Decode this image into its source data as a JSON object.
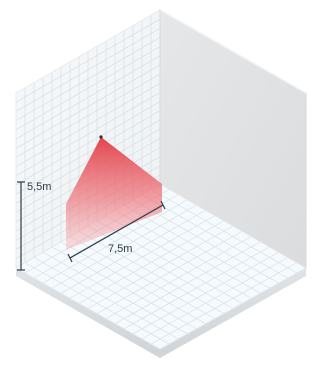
{
  "diagram": {
    "height_label": "5,5m",
    "width_label": "7,5m"
  },
  "colors": {
    "left_wall": "#f4f6f7",
    "right_wall": "#e3e5e6",
    "floor": "#f6f9fb",
    "grid_line": "#cfe1ec",
    "sensor_zone": "#e9474f",
    "dimension_line": "#2f3b4a"
  },
  "icons": {
    "sensor_zone": "detection-area-icon"
  }
}
